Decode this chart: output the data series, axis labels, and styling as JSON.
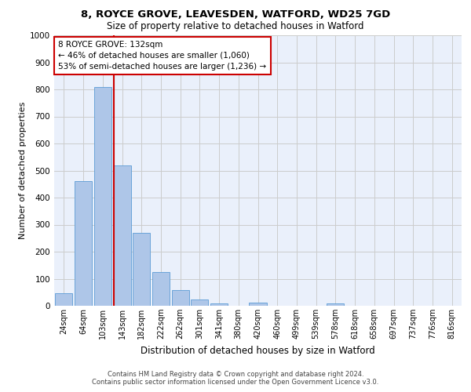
{
  "title_line1": "8, ROYCE GROVE, LEAVESDEN, WATFORD, WD25 7GD",
  "title_line2": "Size of property relative to detached houses in Watford",
  "xlabel": "Distribution of detached houses by size in Watford",
  "ylabel": "Number of detached properties",
  "bar_labels": [
    "24sqm",
    "64sqm",
    "103sqm",
    "143sqm",
    "182sqm",
    "222sqm",
    "262sqm",
    "301sqm",
    "341sqm",
    "380sqm",
    "420sqm",
    "460sqm",
    "499sqm",
    "539sqm",
    "578sqm",
    "618sqm",
    "658sqm",
    "697sqm",
    "737sqm",
    "776sqm",
    "816sqm"
  ],
  "bar_values": [
    45,
    460,
    810,
    520,
    270,
    125,
    57,
    23,
    10,
    0,
    12,
    0,
    0,
    0,
    8,
    0,
    0,
    0,
    0,
    0,
    0
  ],
  "bar_color": "#aec6e8",
  "bar_edge_color": "#5b9bd5",
  "annotation_line1": "8 ROYCE GROVE: 132sqm",
  "annotation_line2": "← 46% of detached houses are smaller (1,060)",
  "annotation_line3": "53% of semi-detached houses are larger (1,236) →",
  "annotation_box_color": "#ffffff",
  "annotation_box_edge": "#cc0000",
  "vline_color": "#cc0000",
  "vline_x": 2.57,
  "ylim": [
    0,
    1000
  ],
  "yticks": [
    0,
    100,
    200,
    300,
    400,
    500,
    600,
    700,
    800,
    900,
    1000
  ],
  "grid_color": "#cccccc",
  "bg_color": "#eaf0fb",
  "footer_line1": "Contains HM Land Registry data © Crown copyright and database right 2024.",
  "footer_line2": "Contains public sector information licensed under the Open Government Licence v3.0."
}
